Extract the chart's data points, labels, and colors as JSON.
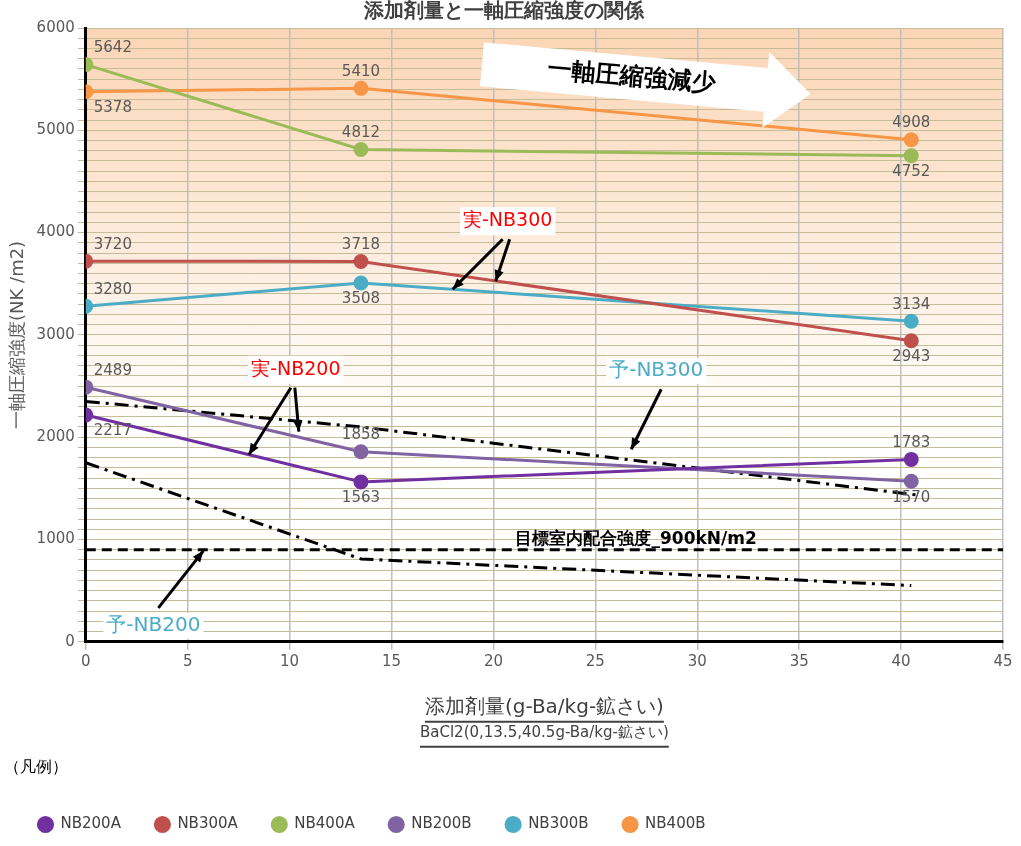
{
  "chart_data": {
    "type": "line",
    "title": "添加剤量と一軸圧縮強度の関係",
    "xlabel": "添加剤量(g-Ba/kg-鉱さい)",
    "ylabel": "一軸圧縮強度(NK /m2)",
    "legend_title": "（凡例）",
    "xlim": [
      0,
      45
    ],
    "xticks": [
      0,
      5,
      10,
      15,
      20,
      25,
      30,
      35,
      40,
      45
    ],
    "ylim": [
      0,
      6000
    ],
    "yticks": [
      0,
      {
        "value": 100,
        "label": null
      },
      {
        "value": 200,
        "label": null
      },
      {
        "value": 300,
        "label": null
      },
      {
        "value": 400,
        "label": null
      },
      {
        "value": 500,
        "label": null
      },
      {
        "value": 600,
        "label": null
      },
      {
        "value": 700,
        "label": null
      },
      {
        "value": 800,
        "label": null
      },
      {
        "value": 900,
        "label": null
      },
      1000,
      {
        "value": 1100,
        "label": null
      },
      {
        "value": 1200,
        "label": null
      },
      {
        "value": 1300,
        "label": null
      },
      {
        "value": 1400,
        "label": null
      },
      {
        "value": 1500,
        "label": null
      },
      {
        "value": 1600,
        "label": null
      },
      {
        "value": 1700,
        "label": null
      },
      {
        "value": 1800,
        "label": null
      },
      {
        "value": 1900,
        "label": null
      },
      2000,
      {
        "value": 2100,
        "label": null
      },
      {
        "value": 2200,
        "label": null
      },
      {
        "value": 2300,
        "label": null
      },
      {
        "value": 2400,
        "label": null
      },
      {
        "value": 2500,
        "label": null
      },
      {
        "value": 2600,
        "label": null
      },
      {
        "value": 2700,
        "label": null
      },
      {
        "value": 2800,
        "label": null
      },
      {
        "value": 2900,
        "label": null
      },
      3000,
      {
        "value": 3100,
        "label": null
      },
      {
        "value": 3200,
        "label": null
      },
      {
        "value": 3300,
        "label": null
      },
      {
        "value": 3400,
        "label": null
      },
      {
        "value": 3500,
        "label": null
      },
      {
        "value": 3600,
        "label": null
      },
      {
        "value": 3700,
        "label": null
      },
      {
        "value": 3800,
        "label": null
      },
      {
        "value": 3900,
        "label": null
      },
      4000,
      {
        "value": 4100,
        "label": null
      },
      {
        "value": 4200,
        "label": null
      },
      {
        "value": 4300,
        "label": null
      },
      {
        "value": 4400,
        "label": null
      },
      {
        "value": 4500,
        "label": null
      },
      {
        "value": 4600,
        "label": null
      },
      {
        "value": 4700,
        "label": null
      },
      {
        "value": 4800,
        "label": null
      },
      {
        "value": 4900,
        "label": null
      },
      5000,
      {
        "value": 5100,
        "label": null
      },
      {
        "value": 5200,
        "label": null
      },
      {
        "value": 5300,
        "label": null
      },
      {
        "value": 5400,
        "label": null
      },
      {
        "value": 5500,
        "label": null
      },
      {
        "value": 5600,
        "label": null
      },
      {
        "value": 5700,
        "label": null
      },
      {
        "value": 5800,
        "label": null
      },
      {
        "value": 5900,
        "label": null
      },
      6000
    ],
    "x": [
      0,
      13.5,
      40.5
    ],
    "grid": true,
    "legend": "bottom",
    "marker": "circle",
    "line_style": "solid",
    "series": [
      {
        "name": "NB200A",
        "color": "#7030a0",
        "values": [
          2217,
          1563,
          1783
        ],
        "value_labels": [
          "2217",
          "1563",
          "1783"
        ]
      },
      {
        "name": "NB300A",
        "color": "#c0504d",
        "values": [
          3720,
          3718,
          2943
        ],
        "value_labels": [
          "3720",
          "3718",
          "2943"
        ]
      },
      {
        "name": "NB400A",
        "color": "#9bbb59",
        "values": [
          5642,
          4812,
          4752
        ],
        "value_labels": [
          "5642",
          "4812",
          "4752"
        ]
      },
      {
        "name": "NB200B",
        "color": "#8064a2",
        "values": [
          2489,
          1858,
          1570
        ],
        "value_labels": [
          "2489",
          "1858",
          "1570"
        ]
      },
      {
        "name": "NB300B",
        "color": "#4bacc6",
        "values": [
          3280,
          3508,
          3134
        ],
        "value_labels": [
          "3280",
          "3508",
          "3134"
        ]
      },
      {
        "name": "NB400B",
        "color": "#f79646",
        "values": [
          5378,
          5410,
          4908
        ],
        "value_labels": [
          "5378",
          "5410",
          "4908"
        ]
      },
      {
        "name": "予-NB300",
        "color": "#000000",
        "x": [
          0,
          13.5,
          41
        ],
        "values": [
          2350,
          2100,
          1430
        ],
        "line_style": "dashed",
        "marker": "none"
      },
      {
        "name": "予-NB200",
        "color": "#000000",
        "x": [
          0,
          13.5,
          40.5
        ],
        "values": [
          1750,
          810,
          550
        ],
        "line_style": "dashed",
        "marker": "none"
      }
    ],
    "ref_lines": [
      {
        "axis": "y",
        "value": 900,
        "label": "目標室内配合強度_900kN/m2",
        "color": "#000000",
        "line_style": "dashed"
      }
    ],
    "annotations": [
      "一軸圧縮強減少",
      {
        "text": "実-NB300",
        "x": 18,
        "y": 3446
      },
      {
        "text": "実-NB200",
        "x": 8,
        "y": 1829
      },
      "BaCl2(0,13.5,40.5g-Ba/kg-鉱さい)"
    ]
  }
}
